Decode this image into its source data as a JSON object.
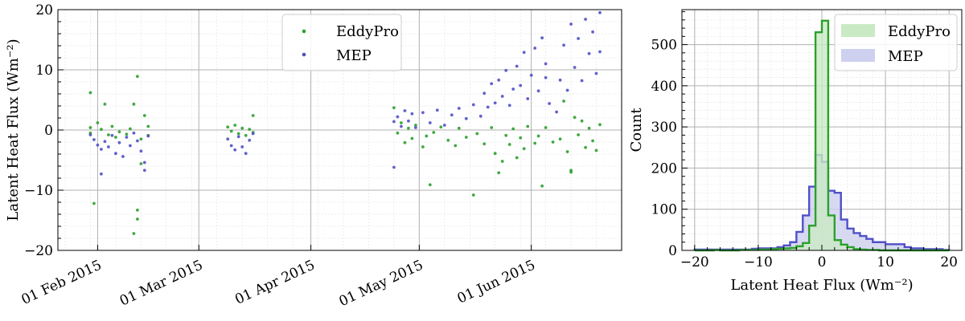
{
  "colors": {
    "eddypro": "#2ca02c",
    "mep": "#5050c8",
    "eddypro_fill": "#c9eac4",
    "mep_fill": "#cdd0ee",
    "grid_major": "#b0b0b0",
    "grid_minor": "#e6e6e6"
  },
  "chart_data": [
    {
      "type": "scatter",
      "xlabel": "",
      "ylabel": "Latent Heat Flux (Wm⁻²)",
      "ylim": [
        -20,
        20
      ],
      "xlim": [
        "2015-01-21",
        "2015-06-26"
      ],
      "yticks": [
        "−20",
        "−10",
        "0",
        "10",
        "20"
      ],
      "xticks": [
        {
          "date": "2015-02-01",
          "label": "01 Feb 2015"
        },
        {
          "date": "2015-03-01",
          "label": "01 Mar 2015"
        },
        {
          "date": "2015-04-01",
          "label": "01 Apr 2015"
        },
        {
          "date": "2015-05-01",
          "label": "01 May 2015"
        },
        {
          "date": "2015-06-01",
          "label": "01 Jun 2015"
        }
      ],
      "grid": true,
      "legend_position": "top-center",
      "series": [
        {
          "name": "EddyPro",
          "color": "#2ca02c",
          "points": [
            [
              "2015-01-30",
              6.2
            ],
            [
              "2015-01-30",
              0.4
            ],
            [
              "2015-01-30",
              -0.5
            ],
            [
              "2015-01-31",
              -12.2
            ],
            [
              "2015-02-01",
              1.2
            ],
            [
              "2015-02-02",
              0.1
            ],
            [
              "2015-02-03",
              4.3
            ],
            [
              "2015-02-04",
              -0.8
            ],
            [
              "2015-02-05",
              0.6
            ],
            [
              "2015-02-06",
              -1.2
            ],
            [
              "2015-02-07",
              -0.3
            ],
            [
              "2015-02-09",
              -0.7
            ],
            [
              "2015-02-10",
              0.2
            ],
            [
              "2015-02-11",
              -17.2
            ],
            [
              "2015-02-11",
              4.3
            ],
            [
              "2015-02-12",
              -13.3
            ],
            [
              "2015-02-12",
              -14.8
            ],
            [
              "2015-02-12",
              8.9
            ],
            [
              "2015-02-13",
              -1.5
            ],
            [
              "2015-02-13",
              -5.6
            ],
            [
              "2015-02-14",
              2.4
            ],
            [
              "2015-02-15",
              0.6
            ],
            [
              "2015-02-15",
              -0.9
            ],
            [
              "2015-03-09",
              0.5
            ],
            [
              "2015-03-10",
              -0.2
            ],
            [
              "2015-03-11",
              0.8
            ],
            [
              "2015-03-12",
              -0.6
            ],
            [
              "2015-03-13",
              0.3
            ],
            [
              "2015-03-14",
              -0.9
            ],
            [
              "2015-03-15",
              0.1
            ],
            [
              "2015-03-16",
              2.4
            ],
            [
              "2015-03-16",
              -0.4
            ],
            [
              "2015-04-24",
              3.7
            ],
            [
              "2015-04-25",
              -0.5
            ],
            [
              "2015-04-26",
              1.2
            ],
            [
              "2015-04-27",
              -2.1
            ],
            [
              "2015-04-28",
              0.3
            ],
            [
              "2015-04-29",
              -1.4
            ],
            [
              "2015-04-30",
              0.8
            ],
            [
              "2015-05-02",
              -2.8
            ],
            [
              "2015-05-03",
              -1.0
            ],
            [
              "2015-05-04",
              -9.1
            ],
            [
              "2015-05-05",
              -0.4
            ],
            [
              "2015-05-07",
              0.5
            ],
            [
              "2015-05-09",
              -1.7
            ],
            [
              "2015-05-11",
              -2.6
            ],
            [
              "2015-05-12",
              0.3
            ],
            [
              "2015-05-14",
              -1.2
            ],
            [
              "2015-05-16",
              -10.8
            ],
            [
              "2015-05-17",
              -0.6
            ],
            [
              "2015-05-19",
              -2.3
            ],
            [
              "2015-05-21",
              0.4
            ],
            [
              "2015-05-22",
              -3.9
            ],
            [
              "2015-05-23",
              -7.1
            ],
            [
              "2015-05-24",
              -5.2
            ],
            [
              "2015-05-25",
              -0.9
            ],
            [
              "2015-05-26",
              -2.4
            ],
            [
              "2015-05-27",
              0.2
            ],
            [
              "2015-05-28",
              -4.6
            ],
            [
              "2015-05-29",
              -1.3
            ],
            [
              "2015-05-30",
              -3.1
            ],
            [
              "2015-05-31",
              0.6
            ],
            [
              "2015-06-02",
              -2.2
            ],
            [
              "2015-06-03",
              -1.0
            ],
            [
              "2015-06-04",
              -9.3
            ],
            [
              "2015-06-05",
              0.4
            ],
            [
              "2015-06-07",
              -2.0
            ],
            [
              "2015-06-09",
              -1.5
            ],
            [
              "2015-06-10",
              4.8
            ],
            [
              "2015-06-11",
              -3.6
            ],
            [
              "2015-06-12",
              -6.7
            ],
            [
              "2015-06-12",
              -7.0
            ],
            [
              "2015-06-13",
              2.1
            ],
            [
              "2015-06-14",
              -0.8
            ],
            [
              "2015-06-15",
              1.5
            ],
            [
              "2015-06-16",
              -2.9
            ],
            [
              "2015-06-17",
              0.3
            ],
            [
              "2015-06-18",
              -1.8
            ],
            [
              "2015-06-19",
              -3.4
            ],
            [
              "2015-06-20",
              0.9
            ]
          ]
        },
        {
          "name": "MEP",
          "color": "#5050c8",
          "points": [
            [
              "2015-01-30",
              -0.8
            ],
            [
              "2015-01-31",
              -1.6
            ],
            [
              "2015-02-01",
              -2.5
            ],
            [
              "2015-02-02",
              -3.2
            ],
            [
              "2015-02-02",
              -7.3
            ],
            [
              "2015-02-03",
              -1.9
            ],
            [
              "2015-02-04",
              -2.8
            ],
            [
              "2015-02-05",
              -0.9
            ],
            [
              "2015-02-06",
              -3.9
            ],
            [
              "2015-02-07",
              -2.1
            ],
            [
              "2015-02-08",
              -4.4
            ],
            [
              "2015-02-09",
              -1.2
            ],
            [
              "2015-02-10",
              -2.6
            ],
            [
              "2015-02-11",
              -0.5
            ],
            [
              "2015-02-12",
              -1.8
            ],
            [
              "2015-02-13",
              -3.5
            ],
            [
              "2015-02-14",
              -6.7
            ],
            [
              "2015-02-14",
              -5.4
            ],
            [
              "2015-02-15",
              -1.0
            ],
            [
              "2015-03-09",
              -1.5
            ],
            [
              "2015-03-10",
              -2.6
            ],
            [
              "2015-03-11",
              -3.3
            ],
            [
              "2015-03-12",
              -1.1
            ],
            [
              "2015-03-13",
              -2.8
            ],
            [
              "2015-03-14",
              -3.9
            ],
            [
              "2015-03-15",
              -1.7
            ],
            [
              "2015-03-16",
              -0.6
            ],
            [
              "2015-04-24",
              1.4
            ],
            [
              "2015-04-24",
              -6.2
            ],
            [
              "2015-04-25",
              2.2
            ],
            [
              "2015-04-26",
              0.6
            ],
            [
              "2015-04-27",
              3.2
            ],
            [
              "2015-04-28",
              1.5
            ],
            [
              "2015-04-29",
              2.7
            ],
            [
              "2015-04-30",
              0.4
            ],
            [
              "2015-05-02",
              2.9
            ],
            [
              "2015-05-04",
              1.2
            ],
            [
              "2015-05-06",
              3.3
            ],
            [
              "2015-05-08",
              0.8
            ],
            [
              "2015-05-10",
              2.5
            ],
            [
              "2015-05-12",
              3.6
            ],
            [
              "2015-05-14",
              1.9
            ],
            [
              "2015-05-16",
              4.2
            ],
            [
              "2015-05-18",
              2.3
            ],
            [
              "2015-05-19",
              6.1
            ],
            [
              "2015-05-20",
              3.8
            ],
            [
              "2015-05-21",
              7.7
            ],
            [
              "2015-05-22",
              4.5
            ],
            [
              "2015-05-23",
              8.3
            ],
            [
              "2015-05-24",
              5.6
            ],
            [
              "2015-05-25",
              9.9
            ],
            [
              "2015-05-26",
              4.1
            ],
            [
              "2015-05-27",
              6.8
            ],
            [
              "2015-05-28",
              10.6
            ],
            [
              "2015-05-29",
              7.4
            ],
            [
              "2015-05-30",
              12.9
            ],
            [
              "2015-05-31",
              5.2
            ],
            [
              "2015-06-01",
              9.1
            ],
            [
              "2015-06-02",
              13.6
            ],
            [
              "2015-06-03",
              6.5
            ],
            [
              "2015-06-04",
              15.3
            ],
            [
              "2015-06-05",
              8.7
            ],
            [
              "2015-06-05",
              11.0
            ],
            [
              "2015-06-06",
              4.4
            ],
            [
              "2015-06-08",
              3.0
            ],
            [
              "2015-06-09",
              8.3
            ],
            [
              "2015-06-10",
              14.1
            ],
            [
              "2015-06-11",
              6.6
            ],
            [
              "2015-06-12",
              17.6
            ],
            [
              "2015-06-13",
              10.4
            ],
            [
              "2015-06-14",
              15.2
            ],
            [
              "2015-06-15",
              8.2
            ],
            [
              "2015-06-16",
              18.4
            ],
            [
              "2015-06-17",
              12.7
            ],
            [
              "2015-06-18",
              16.3
            ],
            [
              "2015-06-19",
              9.4
            ],
            [
              "2015-06-20",
              13.0
            ],
            [
              "2015-06-20",
              19.5
            ]
          ]
        }
      ]
    },
    {
      "type": "bar",
      "subtype": "histogram-step",
      "xlabel": "Latent Heat Flux (Wm⁻²)",
      "ylabel": "Count",
      "xlim": [
        -22,
        22
      ],
      "ylim": [
        0,
        585
      ],
      "xticks": [
        "−20",
        "−10",
        "0",
        "10",
        "20"
      ],
      "yticks": [
        "0",
        "100",
        "200",
        "300",
        "400",
        "500"
      ],
      "grid": true,
      "legend_position": "top-right",
      "bin_edges": [
        -20,
        -19,
        -18,
        -17,
        -16,
        -15,
        -14,
        -13,
        -12,
        -11,
        -10,
        -9,
        -8,
        -7,
        -6,
        -5,
        -4,
        -3,
        -2,
        -1,
        0,
        1,
        2,
        3,
        4,
        5,
        6,
        7,
        8,
        9,
        10,
        11,
        12,
        13,
        14,
        15,
        16,
        17,
        18,
        19,
        20
      ],
      "series": [
        {
          "name": "EddyPro",
          "color": "#2ca02c",
          "fill": "#c9eac4",
          "counts": [
            0,
            0,
            0,
            1,
            0,
            0,
            0,
            1,
            1,
            1,
            2,
            2,
            3,
            4,
            5,
            6,
            10,
            18,
            60,
            530,
            558,
            85,
            25,
            14,
            8,
            3,
            2,
            1,
            1,
            0,
            0,
            0,
            0,
            0,
            0,
            0,
            0,
            0,
            0,
            0
          ]
        },
        {
          "name": "MEP",
          "color": "#5050c8",
          "fill": "#cdd0ee",
          "counts": [
            2,
            2,
            2,
            2,
            2,
            2,
            2,
            2,
            2,
            4,
            5,
            5,
            5,
            8,
            12,
            20,
            45,
            85,
            155,
            232,
            215,
            145,
            140,
            75,
            53,
            42,
            35,
            28,
            20,
            20,
            15,
            15,
            15,
            8,
            5,
            5,
            3,
            3,
            3,
            1
          ]
        }
      ]
    }
  ]
}
